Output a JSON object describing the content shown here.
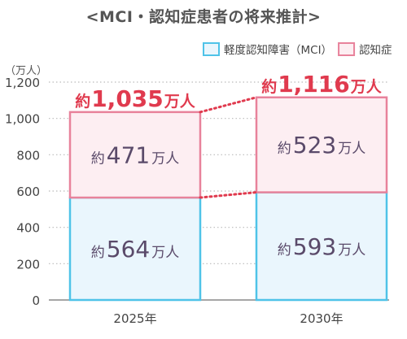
{
  "chart_data": {
    "type": "bar",
    "stacked": true,
    "title": "<MCI・認知症患者の将来推計>",
    "unit_label": "（万人）",
    "categories": [
      "2025年",
      "2030年"
    ],
    "series": [
      {
        "name": "軽度認知障害（MCI）",
        "values": [
          564,
          593
        ],
        "color": "#4fc3e8",
        "fill": "#eaf6fd",
        "labels": [
          "約564万人",
          "約593万人"
        ]
      },
      {
        "name": "認知症",
        "values": [
          471,
          523
        ],
        "color": "#e8829b",
        "fill": "#fdeef2",
        "labels": [
          "約471万人",
          "約523万人"
        ]
      }
    ],
    "totals": {
      "values": [
        1035,
        1116
      ],
      "labels": [
        "約1,035万人",
        "約1,116万人"
      ],
      "color": "#e03a4e"
    },
    "ylim": [
      0,
      1200
    ],
    "yticks": [
      0,
      200,
      400,
      600,
      800,
      1000,
      1200
    ],
    "ytick_labels": [
      "0",
      "200",
      "400",
      "600",
      "800",
      "1,000",
      "1,200"
    ],
    "grid": "dotted",
    "legend": "top-right",
    "text_color": "#5a4a6a"
  }
}
